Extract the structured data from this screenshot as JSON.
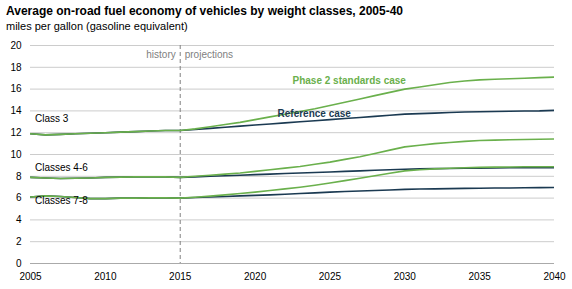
{
  "chart_data": {
    "type": "line",
    "title": "Average on-road fuel economy of vehicles by weight classes, 2005-40",
    "subtitle": "miles per gallon (gasoline equivalent)",
    "x": [
      2005,
      2006,
      2007,
      2008,
      2009,
      2010,
      2011,
      2012,
      2013,
      2014,
      2015,
      2016,
      2017,
      2018,
      2019,
      2020,
      2021,
      2022,
      2023,
      2024,
      2025,
      2026,
      2027,
      2028,
      2029,
      2030,
      2031,
      2032,
      2033,
      2034,
      2035,
      2036,
      2037,
      2038,
      2039,
      2040
    ],
    "series": [
      {
        "color": "#1b3a52",
        "values": [
          11.9,
          11.8,
          11.85,
          11.9,
          11.95,
          12.0,
          12.05,
          12.1,
          12.15,
          12.2,
          12.2,
          12.3,
          12.4,
          12.5,
          12.6,
          12.7,
          12.8,
          12.9,
          13.0,
          13.1,
          13.2,
          13.3,
          13.4,
          13.5,
          13.6,
          13.7,
          13.75,
          13.8,
          13.85,
          13.9,
          13.92,
          13.95,
          13.97,
          13.99,
          14.0,
          14.05
        ]
      },
      {
        "color": "#6ab04c",
        "values": [
          11.9,
          11.8,
          11.85,
          11.9,
          11.95,
          12.0,
          12.05,
          12.1,
          12.15,
          12.2,
          12.2,
          12.35,
          12.55,
          12.75,
          12.95,
          13.2,
          13.45,
          13.7,
          13.95,
          14.2,
          14.5,
          14.8,
          15.1,
          15.4,
          15.7,
          16.0,
          16.2,
          16.4,
          16.6,
          16.75,
          16.85,
          16.9,
          16.95,
          17.0,
          17.05,
          17.1
        ]
      },
      {
        "color": "#1b3a52",
        "values": [
          7.9,
          7.85,
          7.8,
          7.82,
          7.85,
          7.9,
          7.92,
          7.95,
          7.95,
          7.95,
          7.9,
          7.95,
          8.0,
          8.05,
          8.1,
          8.15,
          8.2,
          8.25,
          8.3,
          8.35,
          8.4,
          8.45,
          8.5,
          8.55,
          8.6,
          8.65,
          8.68,
          8.7,
          8.72,
          8.74,
          8.75,
          8.77,
          8.78,
          8.79,
          8.8,
          8.8
        ]
      },
      {
        "color": "#6ab04c",
        "values": [
          7.9,
          7.85,
          7.8,
          7.82,
          7.85,
          7.9,
          7.92,
          7.95,
          7.95,
          7.95,
          7.9,
          8.0,
          8.1,
          8.2,
          8.3,
          8.45,
          8.6,
          8.75,
          8.9,
          9.1,
          9.3,
          9.55,
          9.8,
          10.1,
          10.4,
          10.7,
          10.85,
          11.0,
          11.1,
          11.2,
          11.28,
          11.32,
          11.35,
          11.38,
          11.4,
          11.42
        ]
      },
      {
        "color": "#1b3a52",
        "values": [
          6.1,
          6.2,
          6.15,
          6.05,
          5.95,
          5.95,
          6.0,
          6.0,
          6.02,
          6.02,
          6.0,
          6.05,
          6.1,
          6.15,
          6.2,
          6.25,
          6.3,
          6.35,
          6.42,
          6.48,
          6.55,
          6.6,
          6.65,
          6.7,
          6.75,
          6.8,
          6.83,
          6.85,
          6.87,
          6.89,
          6.9,
          6.92,
          6.93,
          6.95,
          6.96,
          6.97
        ]
      },
      {
        "color": "#6ab04c",
        "values": [
          6.1,
          6.2,
          6.15,
          6.05,
          5.95,
          5.95,
          6.0,
          6.0,
          6.02,
          6.02,
          6.0,
          6.08,
          6.18,
          6.3,
          6.42,
          6.55,
          6.7,
          6.85,
          7.0,
          7.18,
          7.38,
          7.6,
          7.82,
          8.05,
          8.28,
          8.5,
          8.6,
          8.68,
          8.74,
          8.78,
          8.82,
          8.84,
          8.86,
          8.87,
          8.88,
          8.88
        ]
      }
    ],
    "xlim": [
      2005,
      2040
    ],
    "ylim": [
      0,
      20
    ],
    "xticks": [
      2005,
      2010,
      2015,
      2020,
      2025,
      2030,
      2035,
      2040
    ],
    "yticks": [
      0,
      2,
      4,
      6,
      8,
      10,
      12,
      14,
      16,
      18,
      20
    ],
    "grid": "y",
    "vline": 2015,
    "annotations": [
      {
        "text": "Class 3",
        "x": 2005.3,
        "y": 13.0,
        "color": "black"
      },
      {
        "text": "Classes 4-6",
        "x": 2005.3,
        "y": 8.5,
        "color": "black"
      },
      {
        "text": "Classes 7-8",
        "x": 2005.3,
        "y": 5.45,
        "color": "black"
      },
      {
        "text": "history",
        "x": 2014.7,
        "y": 19.5,
        "color": "gray"
      },
      {
        "text": "projections",
        "x": 2015.3,
        "y": 19.5,
        "color": "gray"
      },
      {
        "text": "Reference case",
        "x": 2021.5,
        "y": 13.4,
        "color": "#1b3a52"
      },
      {
        "text": "Phase 2 standards case",
        "x": 2022.5,
        "y": 16.5,
        "color": "#6ab04c"
      }
    ]
  }
}
